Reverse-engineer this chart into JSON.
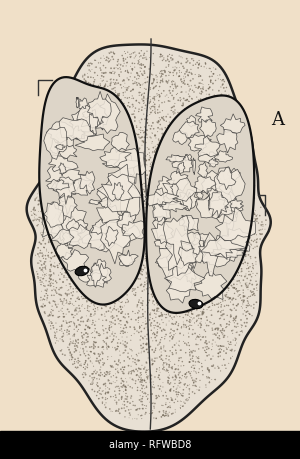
{
  "bg_color": "#f0e0c8",
  "cell_bg": "#e8d8c0",
  "stipple_dark": "#555555",
  "nucleus_interior_light": "#e8ddd0",
  "nucleus_outline_color": "#111111",
  "outer_outline_color": "#222222",
  "blepharoplast_color": "#222222",
  "annotation_label": "A",
  "watermark_text": "alamy - RFWBD8",
  "lw_outer": 1.8,
  "lw_nucleus": 1.6,
  "fig_w": 3.0,
  "fig_h": 4.59,
  "dpi": 100
}
